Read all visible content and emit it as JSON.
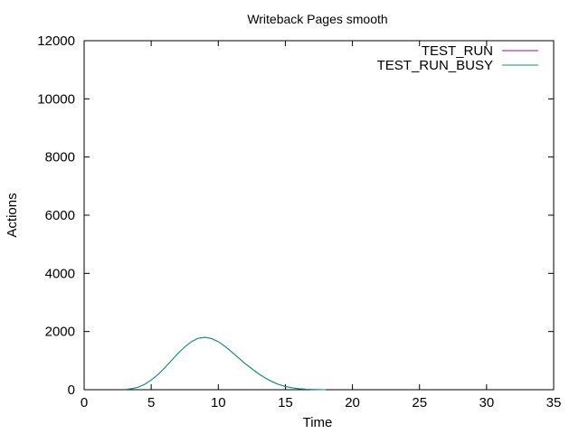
{
  "chart_data": {
    "type": "line",
    "title": "Writeback Pages smooth",
    "xlabel": "Time",
    "ylabel": "Actions",
    "xlim": [
      0,
      35
    ],
    "ylim": [
      0,
      12000
    ],
    "x_ticks": [
      0,
      5,
      10,
      15,
      20,
      25,
      30,
      35
    ],
    "y_ticks": [
      0,
      2000,
      4000,
      6000,
      8000,
      10000,
      12000
    ],
    "x_tick_labels": [
      "0",
      "5",
      "10",
      "15",
      "20",
      "25",
      "30",
      "35"
    ],
    "y_tick_labels": [
      "0",
      "2000",
      "4000",
      "6000",
      "8000",
      "10000",
      "12000"
    ],
    "grid": false,
    "legend_position": "top-right",
    "series": [
      {
        "name": "TEST_RUN",
        "color": "#9400d3",
        "x": [
          3,
          3.5,
          4,
          4.5,
          5,
          5.5,
          6,
          6.5,
          7,
          7.5,
          8,
          8.5,
          9,
          9.5,
          10,
          10.5,
          11,
          11.5,
          12,
          12.5,
          13,
          13.5,
          14,
          14.5,
          15,
          15.5,
          16,
          16.5,
          17,
          17.5,
          18
        ],
        "y": [
          10,
          30,
          80,
          180,
          330,
          520,
          750,
          1000,
          1250,
          1470,
          1650,
          1770,
          1800,
          1760,
          1650,
          1490,
          1300,
          1100,
          900,
          720,
          550,
          400,
          280,
          180,
          110,
          65,
          35,
          18,
          8,
          3,
          0
        ]
      },
      {
        "name": "TEST_RUN_BUSY",
        "color": "#009e73",
        "x": [
          3,
          3.5,
          4,
          4.5,
          5,
          5.5,
          6,
          6.5,
          7,
          7.5,
          8,
          8.5,
          9,
          9.5,
          10,
          10.5,
          11,
          11.5,
          12,
          12.5,
          13,
          13.5,
          14,
          14.5,
          15,
          15.5,
          16,
          16.5,
          17,
          17.5,
          18
        ],
        "y": [
          10,
          30,
          80,
          180,
          330,
          520,
          750,
          1000,
          1250,
          1470,
          1650,
          1770,
          1800,
          1760,
          1650,
          1490,
          1300,
          1100,
          900,
          720,
          550,
          400,
          280,
          180,
          110,
          65,
          35,
          18,
          8,
          3,
          0
        ]
      }
    ]
  }
}
